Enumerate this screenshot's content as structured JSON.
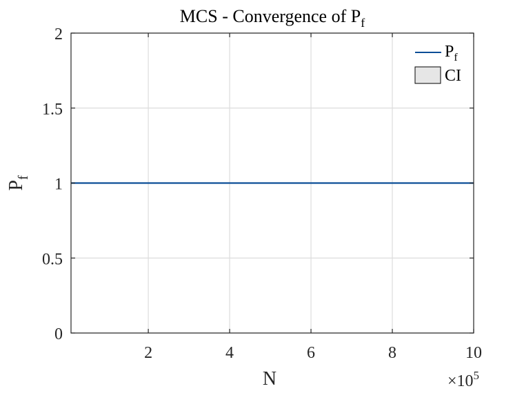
{
  "chart_data": {
    "type": "line",
    "title": {
      "main": "MCS - Convergence of P",
      "sub": "f"
    },
    "xlabel": "N",
    "ylabel": {
      "main": "P",
      "sub": "f"
    },
    "x_exponent": {
      "base": "×10",
      "power": "5"
    },
    "xlim": [
      0.1,
      10
    ],
    "ylim": [
      0,
      2
    ],
    "xticks": [
      2,
      4,
      6,
      8,
      10
    ],
    "xtick_labels": [
      "2",
      "4",
      "6",
      "8",
      "10"
    ],
    "yticks": [
      0,
      0.5,
      1,
      1.5,
      2
    ],
    "ytick_labels": [
      "0",
      "0.5",
      "1",
      "1.5",
      "2"
    ],
    "grid": true,
    "legend_position": "top-right",
    "series": [
      {
        "name": {
          "main": "P",
          "sub": "f"
        },
        "color": "#0b4d96",
        "x": [
          0.1,
          10
        ],
        "y": [
          1,
          1
        ]
      }
    ],
    "ci_band": {
      "name": "CI",
      "fill": "#e6e6e6",
      "edge": "#000000",
      "lower": [
        1,
        1
      ],
      "upper": [
        1,
        1
      ]
    }
  }
}
